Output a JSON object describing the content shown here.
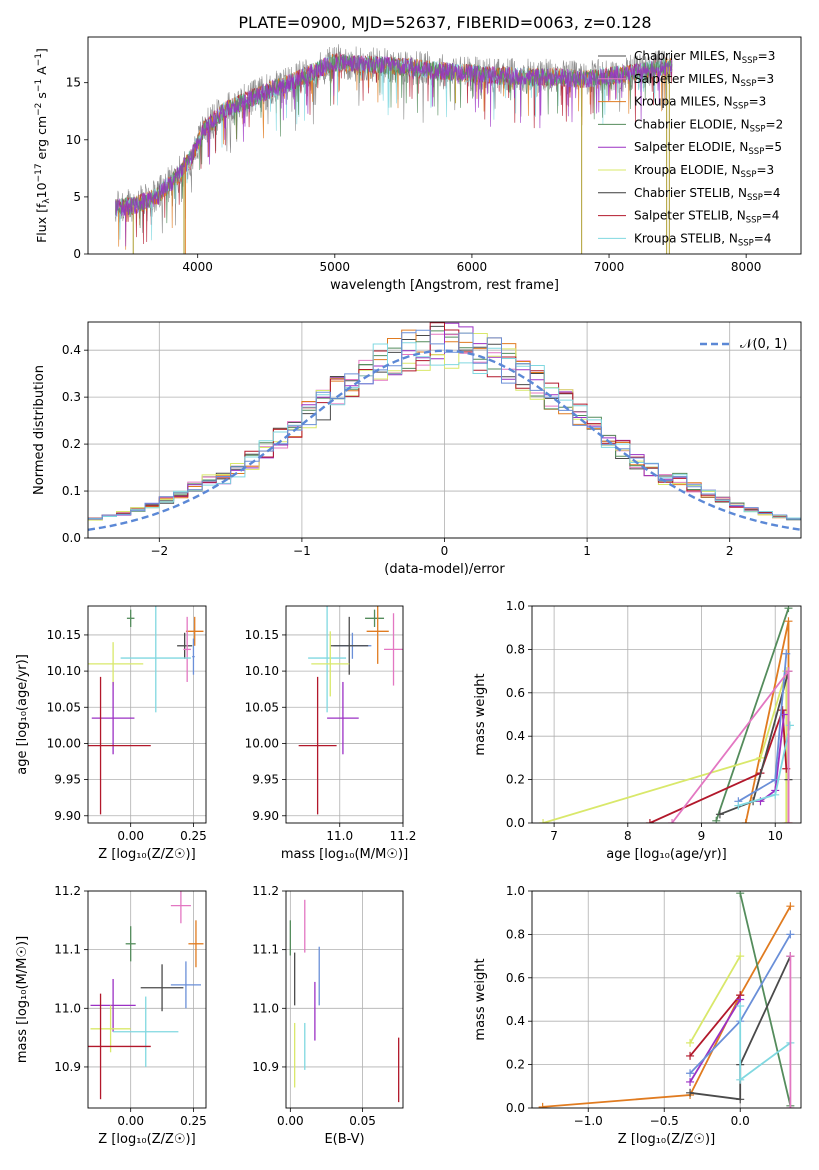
{
  "figure": {
    "title": "PLATE=0900, MJD=52637, FIBERID=0063, z=0.128"
  },
  "colors": {
    "chabrier_miles": "#4a4a4a",
    "salpeter_miles": "#e377c2",
    "kroupa_miles": "#7f7f7f",
    "chabrier_elodie": "#1f77b4",
    "salpeter_elodie": "#9b30c4",
    "kroupa_elodie": "#d9e86a",
    "chabrier_stelib": "#3a3a3a",
    "salpeter_stelib": "#b2182b",
    "kroupa_stelib": "#80d8e0",
    "spec_orange": "#e07b20",
    "spec_olive": "#b5a642",
    "spec_green": "#548c5c",
    "spec_blue": "#6a8fd8",
    "gauss": "#5b88d6",
    "grid": "#b0b0b0"
  },
  "chart_data": [
    {
      "id": "spectrum",
      "type": "line",
      "xlabel": "wavelength [Angstrom, rest frame]",
      "ylabel": "Flux [f$_\\lambda$10$^{-17}$ erg cm$^{-2}$ s$^{-1}$ A$^{-1}$]",
      "ylabel_parts": {
        "a": "Flux [f",
        "a_sub": "λ",
        "b": "10",
        "b_sup": "−17",
        "c": " erg cm",
        "c_sup": "−2",
        "d": " s",
        "d_sup": "−1",
        "e": " A",
        "e_sup": "−1",
        "f": "]"
      },
      "xlim": [
        3200,
        8400
      ],
      "ylim": [
        0,
        19
      ],
      "xticks": [
        4000,
        5000,
        6000,
        7000,
        8000
      ],
      "yticks": [
        0,
        5,
        10,
        15
      ],
      "grid": false,
      "legend_position": "right",
      "legend": [
        {
          "base": "Chabrier MILES, N",
          "sub": "SSP",
          "eq": "=3"
        },
        {
          "base": "Salpeter MILES, N",
          "sub": "SSP",
          "eq": "=3"
        },
        {
          "base": "Kroupa MILES, N",
          "sub": "SSP",
          "eq": "=3"
        },
        {
          "base": "Chabrier ELODIE, N",
          "sub": "SSP",
          "eq": "=2"
        },
        {
          "base": "Salpeter ELODIE, N",
          "sub": "SSP",
          "eq": "=5"
        },
        {
          "base": "Kroupa ELODIE, N",
          "sub": "SSP",
          "eq": "=3"
        },
        {
          "base": "Chabrier STELIB, N",
          "sub": "SSP",
          "eq": "=4"
        },
        {
          "base": "Salpeter STELIB, N",
          "sub": "SSP",
          "eq": "=4"
        },
        {
          "base": "Kroupa STELIB, N",
          "sub": "SSP",
          "eq": "=4"
        }
      ],
      "continuum": {
        "x": [
          3400,
          3550,
          3700,
          3850,
          3950,
          4050,
          4200,
          4350,
          4500,
          4650,
          4800,
          5000,
          5200,
          5400,
          5600,
          5800,
          6000,
          6200,
          6400,
          6600,
          6800,
          7000,
          7200,
          7400
        ],
        "y": [
          4.0,
          4.3,
          5.0,
          6.8,
          8.4,
          11.0,
          12.6,
          13.4,
          14.2,
          14.9,
          15.7,
          16.8,
          16.6,
          16.5,
          16.3,
          16.0,
          15.8,
          15.6,
          15.5,
          15.5,
          15.3,
          15.6,
          15.9,
          16.4
        ]
      }
    },
    {
      "id": "residuals",
      "type": "bar",
      "xlabel": "(data-model)/error",
      "ylabel": "Normed distribution",
      "xlim": [
        -2.5,
        2.5
      ],
      "ylim": [
        0,
        0.46
      ],
      "xticks": [
        -2,
        -1,
        0,
        1,
        2
      ],
      "xtick_labels": [
        "−2",
        "−1",
        "0",
        "1",
        "2"
      ],
      "yticks": [
        0.0,
        0.1,
        0.2,
        0.3,
        0.4
      ],
      "ytick_labels": [
        "0.0",
        "0.1",
        "0.2",
        "0.3",
        "0.4"
      ],
      "grid": true,
      "legend_position": "top-right",
      "legend_label": "𝒩(0, 1)",
      "bin_width": 0.1
    },
    {
      "id": "age_vs_Z",
      "type": "scatter",
      "xlabel": "Z [log₁₀(Z/Z☉)]",
      "ylabel": "age  [log₁₀(age/yr)]",
      "xlim": [
        -0.17,
        0.3
      ],
      "ylim": [
        9.89,
        10.19
      ],
      "xticks": [
        0.0,
        0.25
      ],
      "xtick_labels": [
        "0.00",
        "0.25"
      ],
      "yticks": [
        9.9,
        9.95,
        10.0,
        10.05,
        10.1,
        10.15
      ],
      "ytick_labels": [
        "9.90",
        "9.95",
        "10.00",
        "10.05",
        "10.10",
        "10.15"
      ],
      "grid": true,
      "points": [
        {
          "x": 0.0,
          "y": 10.173,
          "xerr": 0.015,
          "yerr": 0.012,
          "color": "spec_green"
        },
        {
          "x": 0.255,
          "y": 10.155,
          "xerr": 0.035,
          "yerr": 0.02,
          "color": "spec_orange"
        },
        {
          "x": 0.215,
          "y": 10.135,
          "xerr": 0.03,
          "yerr": 0.018,
          "color": "chabrier_miles"
        },
        {
          "x": 0.225,
          "y": 10.13,
          "xerr": 0.015,
          "yerr": 0.045,
          "color": "salpeter_miles"
        },
        {
          "x": 0.25,
          "y": 10.12,
          "xerr": 0.005,
          "yerr": 0.025,
          "color": "spec_blue"
        },
        {
          "x": 0.1,
          "y": 10.118,
          "xerr": 0.14,
          "yerr": 0.075,
          "color": "kroupa_stelib"
        },
        {
          "x": -0.07,
          "y": 10.11,
          "xerr": 0.12,
          "yerr": 0.03,
          "color": "kroupa_elodie"
        },
        {
          "x": -0.07,
          "y": 10.035,
          "xerr": 0.085,
          "yerr": 0.05,
          "color": "salpeter_elodie"
        },
        {
          "x": -0.12,
          "y": 9.997,
          "xerr": 0.2,
          "yerr": 0.095,
          "color": "salpeter_stelib"
        }
      ]
    },
    {
      "id": "age_vs_mass",
      "type": "scatter",
      "xlabel": "mass [log₁₀(M/M☉)]",
      "ylabel": "",
      "xlim": [
        10.83,
        11.2
      ],
      "ylim": [
        9.89,
        10.19
      ],
      "xticks": [
        11.0,
        11.2
      ],
      "xtick_labels": [
        "11.0",
        "11.2"
      ],
      "yticks": [
        9.9,
        9.95,
        10.0,
        10.05,
        10.1,
        10.15
      ],
      "ytick_labels": [
        "9.90",
        "9.95",
        "10.00",
        "10.05",
        "10.10",
        "10.15"
      ],
      "grid": true,
      "points": [
        {
          "x": 11.11,
          "y": 10.173,
          "xerr": 0.03,
          "yerr": 0.012,
          "color": "spec_green"
        },
        {
          "x": 11.12,
          "y": 10.155,
          "xerr": 0.035,
          "yerr": 0.045,
          "color": "spec_orange"
        },
        {
          "x": 11.04,
          "y": 10.135,
          "xerr": 0.06,
          "yerr": 0.018,
          "color": "spec_blue"
        },
        {
          "x": 11.17,
          "y": 10.13,
          "xerr": 0.03,
          "yerr": 0.05,
          "color": "salpeter_miles"
        },
        {
          "x": 11.03,
          "y": 10.135,
          "xerr": 0.06,
          "yerr": 0.04,
          "color": "chabrier_miles"
        },
        {
          "x": 10.96,
          "y": 10.118,
          "xerr": 0.06,
          "yerr": 0.075,
          "color": "kroupa_stelib"
        },
        {
          "x": 10.97,
          "y": 10.11,
          "xerr": 0.06,
          "yerr": 0.045,
          "color": "kroupa_elodie"
        },
        {
          "x": 11.01,
          "y": 10.035,
          "xerr": 0.05,
          "yerr": 0.05,
          "color": "salpeter_elodie"
        },
        {
          "x": 10.93,
          "y": 9.997,
          "xerr": 0.06,
          "yerr": 0.095,
          "color": "salpeter_stelib"
        }
      ]
    },
    {
      "id": "massweight_vs_age",
      "type": "line",
      "xlabel": "age  [log₁₀(age/yr)]",
      "ylabel": "mass weight",
      "xlim": [
        6.7,
        10.35
      ],
      "ylim": [
        0,
        1
      ],
      "xticks": [
        7,
        8,
        9,
        10
      ],
      "yticks": [
        0.0,
        0.2,
        0.4,
        0.6,
        0.8,
        1.0
      ],
      "ytick_labels": [
        "0.0",
        "0.2",
        "0.4",
        "0.6",
        "0.8",
        "1.0"
      ],
      "grid": true,
      "series": [
        {
          "color": "spec_green",
          "x": [
            9.2,
            10.18
          ],
          "y": [
            0.01,
            0.99
          ]
        },
        {
          "color": "spec_orange",
          "x": [
            9.6,
            10.18,
            10.18
          ],
          "y": [
            0.0,
            0.93,
            0.0
          ]
        },
        {
          "color": "kroupa_elodie",
          "x": [
            6.85,
            9.8,
            10.15,
            10.15
          ],
          "y": [
            0.0,
            0.3,
            0.7,
            0.0
          ]
        },
        {
          "color": "salpeter_stelib",
          "x": [
            8.3,
            9.8,
            10.1,
            10.15
          ],
          "y": [
            0.0,
            0.23,
            0.52,
            0.25
          ]
        },
        {
          "color": "chabrier_miles",
          "x": [
            9.25,
            9.7,
            10.18,
            10.18
          ],
          "y": [
            0.04,
            0.1,
            0.7,
            0.2
          ]
        },
        {
          "color": "salpeter_elodie",
          "x": [
            9.8,
            10.0,
            10.12
          ],
          "y": [
            0.1,
            0.15,
            0.5
          ]
        },
        {
          "color": "spec_blue",
          "x": [
            9.5,
            10.0,
            10.15
          ],
          "y": [
            0.1,
            0.2,
            0.78
          ]
        },
        {
          "color": "kroupa_stelib",
          "x": [
            9.5,
            10.0,
            10.2
          ],
          "y": [
            0.08,
            0.13,
            0.45
          ]
        },
        {
          "color": "salpeter_miles",
          "x": [
            8.6,
            10.18,
            10.18
          ],
          "y": [
            0.0,
            0.7,
            0.0
          ]
        }
      ]
    },
    {
      "id": "mass_vs_Z",
      "type": "scatter",
      "xlabel": "Z [log₁₀(Z/Z☉)]",
      "ylabel": "mass [log₁₀(M/M☉)]",
      "xlim": [
        -0.17,
        0.3
      ],
      "ylim": [
        10.83,
        11.2
      ],
      "xticks": [
        0.0,
        0.25
      ],
      "xtick_labels": [
        "0.00",
        "0.25"
      ],
      "yticks": [
        10.9,
        11.0,
        11.1,
        11.2
      ],
      "ytick_labels": [
        "10.9",
        "11.0",
        "11.1",
        "11.2"
      ],
      "grid": true,
      "points": [
        {
          "x": 0.2,
          "y": 11.175,
          "xerr": 0.04,
          "yerr": 0.03,
          "color": "salpeter_miles"
        },
        {
          "x": 0.0,
          "y": 11.11,
          "xerr": 0.02,
          "yerr": 0.03,
          "color": "spec_green"
        },
        {
          "x": 0.26,
          "y": 11.11,
          "xerr": 0.03,
          "yerr": 0.04,
          "color": "spec_orange"
        },
        {
          "x": 0.22,
          "y": 11.04,
          "xerr": 0.06,
          "yerr": 0.04,
          "color": "spec_blue"
        },
        {
          "x": 0.125,
          "y": 11.035,
          "xerr": 0.085,
          "yerr": 0.04,
          "color": "chabrier_miles"
        },
        {
          "x": -0.07,
          "y": 11.005,
          "xerr": 0.09,
          "yerr": 0.045,
          "color": "salpeter_elodie"
        },
        {
          "x": -0.08,
          "y": 10.965,
          "xerr": 0.08,
          "yerr": 0.04,
          "color": "kroupa_elodie"
        },
        {
          "x": 0.06,
          "y": 10.96,
          "xerr": 0.13,
          "yerr": 0.06,
          "color": "kroupa_stelib"
        },
        {
          "x": -0.12,
          "y": 10.935,
          "xerr": 0.2,
          "yerr": 0.09,
          "color": "salpeter_stelib"
        }
      ]
    },
    {
      "id": "mass_vs_ebv",
      "type": "scatter",
      "xlabel": "E(B-V)",
      "ylabel": "",
      "xlim": [
        -0.003,
        0.078
      ],
      "ylim": [
        10.83,
        11.2
      ],
      "xticks": [
        0.0,
        0.05
      ],
      "xtick_labels": [
        "0.00",
        "0.05"
      ],
      "yticks": [
        10.9,
        11.0,
        11.1,
        11.2
      ],
      "ytick_labels": [
        "10.9",
        "11.0",
        "11.1",
        "11.2"
      ],
      "grid": true,
      "points": [
        {
          "x": 0.01,
          "y": 11.14,
          "xerr": 0.0,
          "yerr": 0.045,
          "color": "salpeter_miles"
        },
        {
          "x": 0.0,
          "y": 11.12,
          "xerr": 0.0,
          "yerr": 0.03,
          "color": "spec_green"
        },
        {
          "x": 0.02,
          "y": 11.055,
          "xerr": 0.0,
          "yerr": 0.05,
          "color": "spec_blue"
        },
        {
          "x": 0.003,
          "y": 11.05,
          "xerr": 0.0,
          "yerr": 0.045,
          "color": "chabrier_miles"
        },
        {
          "x": 0.017,
          "y": 10.995,
          "xerr": 0.0,
          "yerr": 0.05,
          "color": "salpeter_elodie"
        },
        {
          "x": 0.003,
          "y": 10.92,
          "xerr": 0.0,
          "yerr": 0.055,
          "color": "kroupa_elodie"
        },
        {
          "x": 0.01,
          "y": 10.935,
          "xerr": 0.0,
          "yerr": 0.04,
          "color": "kroupa_stelib"
        },
        {
          "x": 0.075,
          "y": 10.895,
          "xerr": 0.0,
          "yerr": 0.055,
          "color": "salpeter_stelib"
        }
      ]
    },
    {
      "id": "massweight_vs_Z",
      "type": "line",
      "xlabel": "Z [log₁₀(Z/Z☉)]",
      "ylabel": "mass weight",
      "xlim": [
        -1.37,
        0.4
      ],
      "ylim": [
        0,
        1
      ],
      "xticks": [
        -1.0,
        -0.5,
        0.0
      ],
      "xtick_labels": [
        "−1.0",
        "−0.5",
        "0.0"
      ],
      "yticks": [
        0.0,
        0.2,
        0.4,
        0.6,
        0.8,
        1.0
      ],
      "ytick_labels": [
        "0.0",
        "0.2",
        "0.4",
        "0.6",
        "0.8",
        "1.0"
      ],
      "grid": true,
      "series": [
        {
          "color": "spec_orange",
          "x": [
            -1.3,
            -0.33,
            0.0,
            0.33
          ],
          "y": [
            0.005,
            0.06,
            0.52,
            0.93
          ]
        },
        {
          "color": "spec_green",
          "x": [
            0.0,
            0.33
          ],
          "y": [
            0.99,
            0.01
          ]
        },
        {
          "color": "kroupa_elodie",
          "x": [
            -0.33,
            0.0
          ],
          "y": [
            0.3,
            0.7
          ]
        },
        {
          "color": "salpeter_stelib",
          "x": [
            -0.33,
            0.0
          ],
          "y": [
            0.24,
            0.52
          ]
        },
        {
          "color": "salpeter_elodie",
          "x": [
            -0.33,
            0.0
          ],
          "y": [
            0.12,
            0.5
          ]
        },
        {
          "color": "spec_blue",
          "x": [
            -0.33,
            0.0,
            0.33
          ],
          "y": [
            0.16,
            0.4,
            0.8
          ]
        },
        {
          "color": "chabrier_miles",
          "x": [
            -0.33,
            0.0,
            0.0,
            0.33
          ],
          "y": [
            0.07,
            0.04,
            0.2,
            0.7
          ]
        },
        {
          "color": "kroupa_stelib",
          "x": [
            0.0,
            0.0,
            0.33
          ],
          "y": [
            0.47,
            0.13,
            0.3
          ]
        },
        {
          "color": "salpeter_miles",
          "x": [
            0.33,
            0.33
          ],
          "y": [
            0.7,
            0.0
          ]
        }
      ]
    }
  ]
}
